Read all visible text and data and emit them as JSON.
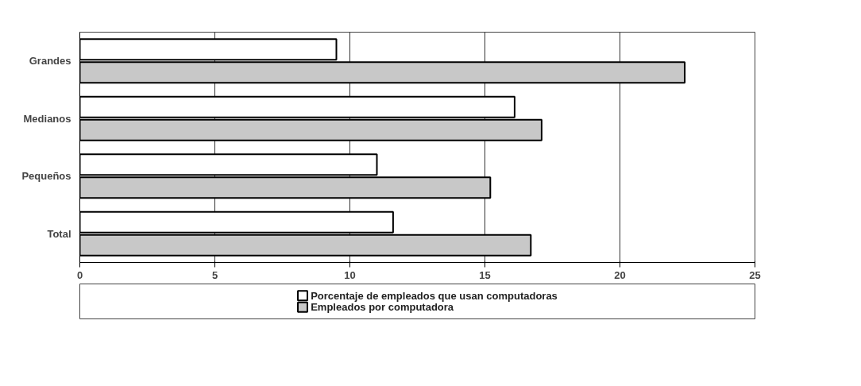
{
  "chart_data": {
    "type": "bar",
    "orientation": "horizontal",
    "categories": [
      "Grandes",
      "Medianos",
      "Pequeños",
      "Total"
    ],
    "series": [
      {
        "name": "Porcentaje de empleados que usan computadoras",
        "color": "#ffffff",
        "values": [
          9.5,
          16.1,
          11.0,
          11.6
        ]
      },
      {
        "name": "Empleados por computadora",
        "color": "#c8c8c8",
        "values": [
          22.4,
          17.1,
          15.2,
          16.7
        ]
      }
    ],
    "xlim": [
      0,
      25
    ],
    "xticks": [
      0,
      5,
      10,
      15,
      20,
      25
    ],
    "grid": "x",
    "legend": "bottom"
  }
}
